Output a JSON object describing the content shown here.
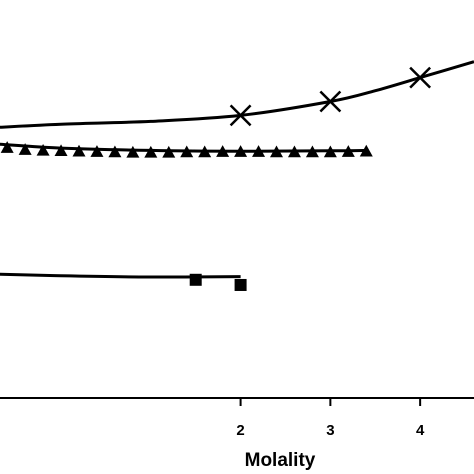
{
  "chart_data": {
    "type": "scatter",
    "title": "",
    "xlabel": "Molality",
    "ylabel": "",
    "xlim": [
      -0.68,
      4.6
    ],
    "ylim": [
      0,
      1
    ],
    "xticks": [
      2,
      3,
      4
    ],
    "grid": false,
    "legend": "none",
    "series": [
      {
        "marker": "x",
        "points": [
          [
            2,
            0.71
          ],
          [
            3,
            0.745
          ],
          [
            4,
            0.805
          ]
        ],
        "fit": [
          [
            -0.7,
            0.68
          ],
          [
            0,
            0.688
          ],
          [
            1,
            0.695
          ],
          [
            2,
            0.71
          ],
          [
            3,
            0.745
          ],
          [
            3.5,
            0.772
          ],
          [
            4,
            0.805
          ],
          [
            4.6,
            0.845
          ]
        ]
      },
      {
        "marker": "triangle",
        "points": [
          [
            -0.6,
            0.629
          ],
          [
            -0.4,
            0.624
          ],
          [
            -0.2,
            0.622
          ],
          [
            0,
            0.621
          ],
          [
            0.2,
            0.62
          ],
          [
            0.4,
            0.619
          ],
          [
            0.6,
            0.618
          ],
          [
            0.8,
            0.617
          ],
          [
            1.0,
            0.617
          ],
          [
            1.2,
            0.617
          ],
          [
            1.4,
            0.618
          ],
          [
            1.6,
            0.618
          ],
          [
            1.8,
            0.619
          ],
          [
            2.0,
            0.619
          ],
          [
            2.2,
            0.619
          ],
          [
            2.4,
            0.618
          ],
          [
            2.6,
            0.618
          ],
          [
            2.8,
            0.618
          ],
          [
            3.0,
            0.618
          ],
          [
            3.2,
            0.619
          ],
          [
            3.4,
            0.62
          ]
        ],
        "fit": [
          [
            -0.7,
            0.638
          ],
          [
            0,
            0.628
          ],
          [
            1,
            0.622
          ],
          [
            2,
            0.62
          ],
          [
            3,
            0.621
          ],
          [
            3.4,
            0.622
          ]
        ]
      },
      {
        "marker": "square",
        "points": [
          [
            1.5,
            0.297
          ],
          [
            2.0,
            0.284
          ]
        ],
        "fit": [
          [
            -0.7,
            0.311
          ],
          [
            0,
            0.307
          ],
          [
            1,
            0.304
          ],
          [
            2,
            0.305
          ]
        ]
      }
    ]
  }
}
